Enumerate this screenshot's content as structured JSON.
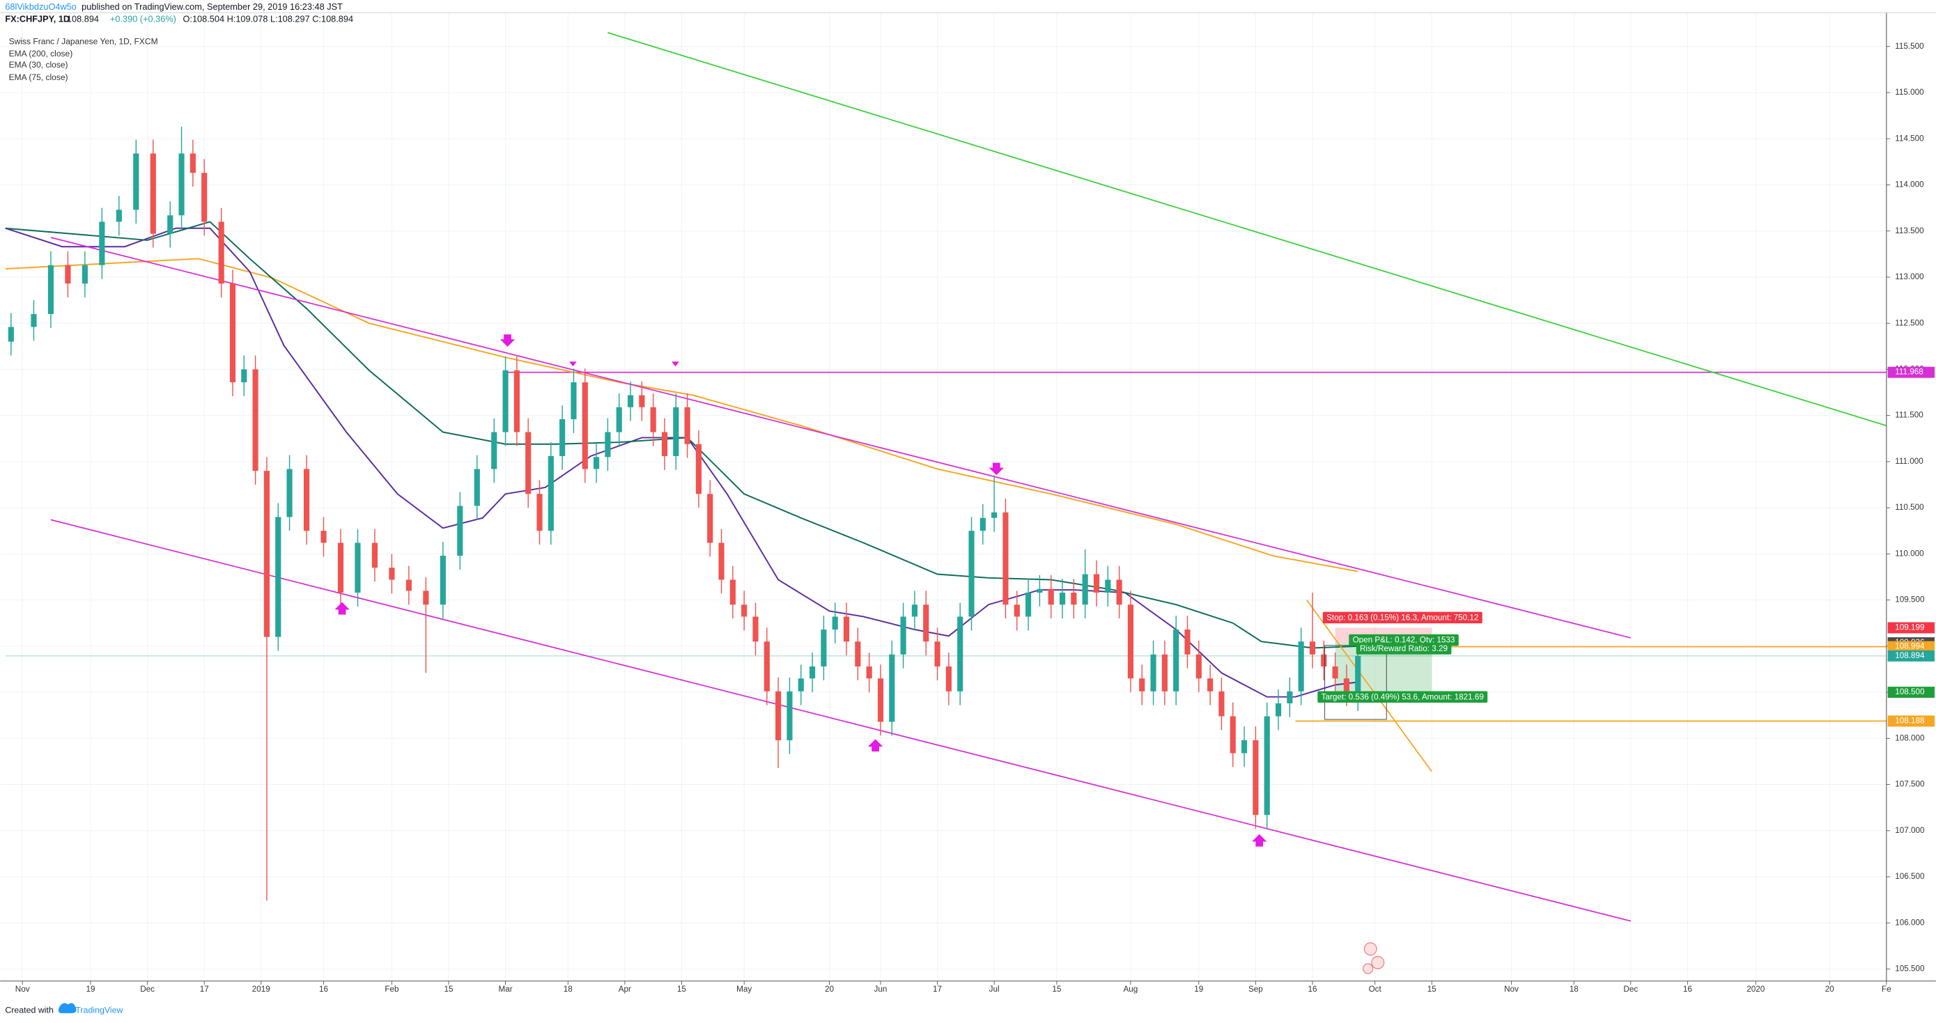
{
  "header": {
    "author": "68lVikbdzuO4w5o",
    "published": "published on TradingView.com, September 29, 2019 16:23:48 JST",
    "symbol": "FX:CHFJPY, 1D",
    "last": "108.894",
    "change": "+0.390 (+0.36%)",
    "ohlc": "O:108.504 H:109.078 L:108.297 C:108.894",
    "footer": "Created with",
    "brand": "TradingView"
  },
  "chart_data": {
    "type": "candlestick",
    "title": "Swiss Franc / Japanese Yen, 1D, FXCM",
    "up_color": "#26a69a",
    "down_color": "#ef5350",
    "grid": true,
    "xlim": [
      -3,
      328
    ],
    "ylim": [
      105.37,
      115.87
    ],
    "xticks": [
      {
        "value": 0,
        "label": "Nov"
      },
      {
        "value": 12,
        "label": "19"
      },
      {
        "value": 22,
        "label": "Dec"
      },
      {
        "value": 32,
        "label": "17"
      },
      {
        "value": 42,
        "label": "2019"
      },
      {
        "value": 53,
        "label": "16"
      },
      {
        "value": 65,
        "label": "Feb"
      },
      {
        "value": 75,
        "label": "15"
      },
      {
        "value": 85,
        "label": "Mar"
      },
      {
        "value": 96,
        "label": "18"
      },
      {
        "value": 106,
        "label": "Apr"
      },
      {
        "value": 116,
        "label": "15"
      },
      {
        "value": 127,
        "label": "May"
      },
      {
        "value": 142,
        "label": "20"
      },
      {
        "value": 151,
        "label": "Jun"
      },
      {
        "value": 161,
        "label": "17"
      },
      {
        "value": 171,
        "label": "Jul"
      },
      {
        "value": 182,
        "label": "15"
      },
      {
        "value": 195,
        "label": "Aug"
      },
      {
        "value": 207,
        "label": "19"
      },
      {
        "value": 217,
        "label": "Sep"
      },
      {
        "value": 227,
        "label": "16"
      },
      {
        "value": 238,
        "label": "Oct"
      },
      {
        "value": 248,
        "label": "15"
      },
      {
        "value": 262,
        "label": "Nov"
      },
      {
        "value": 273,
        "label": "18"
      },
      {
        "value": 283,
        "label": "Dec"
      },
      {
        "value": 293,
        "label": "16"
      },
      {
        "value": 305,
        "label": "2020"
      },
      {
        "value": 318,
        "label": "20"
      },
      {
        "value": 328,
        "label": "Fe"
      }
    ],
    "yticks": [
      {
        "value": 105.5,
        "label": "105.500"
      },
      {
        "value": 106,
        "label": "106.000"
      },
      {
        "value": 106.5,
        "label": "106.500"
      },
      {
        "value": 107,
        "label": "107.000"
      },
      {
        "value": 107.5,
        "label": "107.500"
      },
      {
        "value": 108,
        "label": "108.000"
      },
      {
        "value": 108.5,
        "label": "108.500"
      },
      {
        "value": 109,
        "label": "109.000"
      },
      {
        "value": 109.5,
        "label": "109.500"
      },
      {
        "value": 110,
        "label": "110.000"
      },
      {
        "value": 110.5,
        "label": "110.500"
      },
      {
        "value": 111,
        "label": "111.000"
      },
      {
        "value": 111.5,
        "label": "111.500"
      },
      {
        "value": 112,
        "label": "112.000"
      },
      {
        "value": 112.5,
        "label": "112.500"
      },
      {
        "value": 113,
        "label": "113.000"
      },
      {
        "value": 113.5,
        "label": "113.500"
      },
      {
        "value": 114,
        "label": "114.000"
      },
      {
        "value": 114.5,
        "label": "114.500"
      },
      {
        "value": 115,
        "label": "115.000"
      },
      {
        "value": 115.5,
        "label": "115.500"
      }
    ],
    "x": [
      -2,
      2,
      5,
      8,
      11,
      14,
      17,
      20,
      23,
      26,
      28,
      30,
      32,
      35,
      37,
      39,
      41,
      43,
      45,
      47,
      50,
      53,
      56,
      59,
      62,
      65,
      68,
      71,
      74,
      77,
      80,
      83,
      85,
      87,
      89,
      91,
      93,
      95,
      97,
      99,
      101,
      103,
      105,
      107,
      109,
      111,
      113,
      115,
      117,
      119,
      121,
      123,
      125,
      127,
      129,
      131,
      133,
      135,
      137,
      139,
      141,
      143,
      145,
      147,
      149,
      151,
      153,
      155,
      157,
      159,
      161,
      163,
      165,
      167,
      169,
      171,
      173,
      175,
      177,
      179,
      181,
      183,
      185,
      187,
      189,
      191,
      193,
      195,
      197,
      199,
      201,
      203,
      205,
      207,
      209,
      211,
      213,
      215,
      217,
      219,
      221,
      223,
      225,
      227,
      229,
      231,
      233,
      235
    ],
    "open": [
      112.3,
      112.46,
      112.6,
      113.13,
      112.93,
      113.13,
      113.6,
      113.73,
      114.34,
      113.47,
      113.67,
      114.34,
      114.13,
      113.6,
      112.93,
      111.86,
      112.0,
      110.9,
      109.1,
      110.4,
      110.92,
      110.25,
      110.12,
      109.58,
      110.12,
      109.85,
      109.72,
      109.6,
      109.45,
      109.98,
      110.52,
      110.92,
      111.32,
      111.99,
      111.32,
      110.65,
      110.25,
      111.06,
      111.46,
      111.86,
      110.92,
      111.05,
      111.32,
      111.59,
      111.72,
      111.59,
      111.32,
      111.06,
      111.59,
      111.19,
      110.65,
      110.12,
      109.72,
      109.45,
      109.32,
      109.05,
      108.51,
      107.98,
      108.51,
      108.65,
      108.78,
      109.18,
      109.32,
      109.05,
      108.78,
      108.65,
      108.18,
      108.91,
      109.32,
      109.45,
      109.05,
      108.78,
      108.51,
      109.32,
      110.25,
      110.39,
      110.45,
      109.45,
      109.32,
      109.58,
      109.62,
      109.45,
      109.58,
      109.45,
      109.78,
      109.58,
      109.72,
      109.45,
      108.65,
      108.51,
      108.91,
      108.51,
      109.18,
      108.91,
      108.65,
      108.51,
      108.24,
      107.84,
      107.98,
      107.17,
      108.24,
      108.38,
      108.51,
      109.05,
      108.91,
      108.78,
      108.65,
      108.504
    ],
    "high": [
      112.61,
      112.75,
      113.28,
      113.28,
      113.28,
      113.75,
      113.88,
      114.49,
      114.49,
      113.82,
      114.63,
      114.49,
      114.28,
      113.75,
      113.08,
      112.15,
      112.15,
      111.05,
      110.55,
      111.07,
      111.07,
      110.4,
      110.27,
      110.27,
      110.27,
      110.0,
      109.87,
      109.75,
      110.13,
      110.67,
      111.07,
      111.47,
      112.14,
      112.14,
      111.47,
      110.8,
      111.21,
      111.61,
      112.01,
      112.01,
      111.2,
      111.47,
      111.74,
      111.87,
      111.87,
      111.74,
      111.47,
      111.74,
      111.74,
      111.34,
      110.8,
      110.27,
      109.87,
      109.6,
      109.47,
      109.2,
      108.66,
      108.66,
      108.8,
      108.93,
      109.33,
      109.47,
      109.47,
      109.2,
      108.93,
      108.8,
      109.06,
      109.47,
      109.6,
      109.6,
      109.2,
      108.93,
      109.47,
      110.4,
      110.54,
      110.85,
      110.6,
      109.6,
      109.73,
      109.77,
      109.77,
      109.73,
      109.73,
      110.05,
      109.93,
      109.87,
      109.87,
      109.6,
      108.8,
      109.06,
      109.06,
      109.33,
      109.33,
      109.06,
      108.8,
      108.66,
      108.39,
      108.13,
      108.13,
      108.39,
      108.53,
      108.66,
      109.2,
      109.58,
      109.06,
      108.93,
      108.8,
      109.078
    ],
    "low": [
      112.15,
      112.31,
      112.45,
      112.78,
      112.78,
      112.98,
      113.45,
      113.58,
      113.32,
      113.32,
      113.52,
      113.98,
      113.45,
      112.78,
      111.71,
      111.71,
      110.75,
      106.24,
      108.95,
      110.25,
      110.1,
      109.97,
      109.43,
      109.43,
      109.7,
      109.57,
      109.45,
      108.71,
      109.3,
      109.83,
      110.37,
      110.77,
      111.17,
      111.17,
      110.5,
      110.1,
      110.1,
      110.91,
      111.31,
      110.77,
      110.77,
      110.9,
      111.17,
      111.44,
      111.44,
      111.17,
      110.91,
      110.91,
      111.04,
      110.5,
      109.97,
      109.57,
      109.3,
      109.17,
      108.9,
      108.36,
      107.68,
      107.83,
      108.36,
      108.5,
      108.63,
      109.03,
      108.9,
      108.63,
      108.5,
      108.03,
      108.03,
      108.76,
      109.17,
      108.9,
      108.63,
      108.36,
      108.36,
      109.17,
      110.1,
      110.24,
      109.3,
      109.17,
      109.17,
      109.43,
      109.3,
      109.3,
      109.3,
      109.3,
      109.43,
      109.43,
      109.3,
      108.5,
      108.36,
      108.36,
      108.36,
      108.36,
      108.76,
      108.5,
      108.36,
      108.09,
      107.69,
      107.69,
      107.02,
      107.02,
      108.09,
      108.23,
      108.36,
      108.76,
      108.63,
      108.5,
      108.35,
      108.297
    ],
    "close": [
      112.46,
      112.6,
      113.13,
      112.93,
      113.13,
      113.6,
      113.73,
      114.34,
      113.47,
      113.67,
      114.34,
      114.13,
      113.6,
      112.93,
      111.86,
      112.0,
      110.9,
      109.1,
      110.4,
      110.92,
      110.25,
      110.12,
      109.58,
      110.12,
      109.85,
      109.72,
      109.6,
      109.45,
      109.98,
      110.52,
      110.92,
      111.32,
      111.99,
      111.32,
      110.65,
      110.25,
      111.06,
      111.46,
      111.86,
      110.92,
      111.05,
      111.32,
      111.59,
      111.72,
      111.59,
      111.32,
      111.06,
      111.59,
      111.19,
      110.65,
      110.12,
      109.72,
      109.45,
      109.32,
      109.05,
      108.51,
      107.98,
      108.51,
      108.65,
      108.78,
      109.18,
      109.32,
      109.05,
      108.78,
      108.65,
      108.18,
      108.91,
      109.32,
      109.45,
      109.05,
      108.78,
      108.51,
      109.32,
      110.25,
      110.39,
      110.45,
      109.45,
      109.32,
      109.58,
      109.62,
      109.45,
      109.58,
      109.45,
      109.78,
      109.58,
      109.72,
      109.45,
      108.65,
      108.51,
      108.91,
      108.51,
      109.18,
      108.91,
      108.65,
      108.51,
      108.24,
      107.84,
      107.98,
      107.17,
      108.24,
      108.38,
      108.51,
      109.05,
      108.91,
      108.78,
      108.65,
      108.5,
      108.894
    ],
    "series": [
      {
        "name": "EMA (200, close)",
        "color": "#f5a623",
        "x": [
          -3,
          31,
          44,
          61,
          85,
          105,
          118,
          137,
          161,
          181,
          203,
          220,
          235
        ],
        "values": [
          113.09,
          113.2,
          112.99,
          112.5,
          112.13,
          111.86,
          111.72,
          111.39,
          110.92,
          110.65,
          110.32,
          109.98,
          109.81
        ]
      },
      {
        "name": "EMA (30, close)",
        "color": "#5b2c9e",
        "x": [
          -3,
          7,
          18,
          27,
          33,
          40,
          46,
          57,
          66,
          74,
          81,
          85,
          92,
          100,
          109,
          117,
          124,
          133,
          142,
          148,
          157,
          163,
          170,
          179,
          185,
          194,
          203,
          211,
          219,
          224,
          231,
          235
        ],
        "values": [
          113.53,
          113.33,
          113.33,
          113.53,
          113.53,
          113.06,
          112.26,
          111.32,
          110.65,
          110.28,
          110.39,
          110.65,
          110.72,
          111.06,
          111.26,
          111.26,
          110.65,
          109.72,
          109.38,
          109.32,
          109.18,
          109.11,
          109.45,
          109.61,
          109.61,
          109.58,
          109.18,
          108.71,
          108.45,
          108.45,
          108.58,
          108.61
        ]
      },
      {
        "name": "EMA (75, close)",
        "color": "#0b6b57",
        "x": [
          -3,
          22,
          33,
          40,
          50,
          61,
          74,
          85,
          94,
          105,
          117,
          127,
          137,
          148,
          161,
          170,
          181,
          192,
          203,
          213,
          218,
          227,
          235
        ],
        "values": [
          113.53,
          113.4,
          113.6,
          113.2,
          112.66,
          111.99,
          111.32,
          111.19,
          111.19,
          111.21,
          111.26,
          110.65,
          110.39,
          110.12,
          109.78,
          109.74,
          109.72,
          109.61,
          109.45,
          109.25,
          109.05,
          108.98,
          109.0
        ]
      }
    ],
    "trendlines": [
      {
        "color": "#39d039",
        "x": [
          103,
          328
        ],
        "y": [
          115.65,
          111.39
        ]
      },
      {
        "color": "#d62fd6",
        "x": [
          5,
          283
        ],
        "y": [
          113.43,
          109.09
        ]
      },
      {
        "color": "#d62fd6",
        "x": [
          5,
          283
        ],
        "y": [
          110.37,
          106.02
        ]
      },
      {
        "color": "#f5a623",
        "x": [
          226,
          248
        ],
        "y": [
          109.5,
          107.64
        ]
      }
    ],
    "hlines": [
      {
        "value": 111.968,
        "from": 85,
        "color": "#d62fd6"
      },
      {
        "value": 108.994,
        "from": 235,
        "color": "#f5a623"
      },
      {
        "value": 108.188,
        "from": 224,
        "color": "#f5a623"
      },
      {
        "value": 108.894,
        "from": -3,
        "color": "#9fd4cf"
      }
    ],
    "price_labels": [
      {
        "value": 111.968,
        "color": "#d62fd6"
      },
      {
        "value": 109.199,
        "color": "#f23645"
      },
      {
        "value": 109.036,
        "color": "#4a4a4a"
      },
      {
        "value": 108.994,
        "color": "#f5a623"
      },
      {
        "value": 108.894,
        "color": "#26a69a"
      },
      {
        "value": 108.5,
        "label": "108.500",
        "color": "#1e9e3a"
      },
      {
        "value": 108.188,
        "color": "#f5a623"
      }
    ],
    "position": {
      "entry": 109.036,
      "stop": 109.199,
      "target": 108.5,
      "x": [
        231,
        248
      ],
      "stop_label": "Stop: 0.163 (0.15%) 16.3, Amount: 750.12",
      "pnl_label": "Open P&L: 0.142, Qty: 1533",
      "rr_label": "Risk/Reward Ratio: 3.29",
      "target_label": "Target: 0.536 (0.49%) 53.6, Amount: 1821.69"
    }
  }
}
